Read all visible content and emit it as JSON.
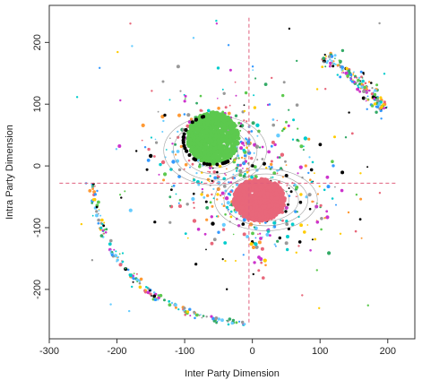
{
  "chart_data": {
    "type": "scatter",
    "title": "",
    "xlabel": "Inter Party Dimension",
    "ylabel": "Intra Party Dimension",
    "xlim": [
      -300,
      240
    ],
    "ylim": [
      -280,
      260
    ],
    "xticks": [
      -300,
      -200,
      -100,
      0,
      100,
      200
    ],
    "yticks": [
      -200,
      -100,
      0,
      100,
      200
    ],
    "xtick_labels": [
      "-300",
      "-200",
      "-100",
      "0",
      "100",
      "200"
    ],
    "ytick_labels": [
      "-200",
      "-100",
      "0",
      "100",
      "200"
    ],
    "reference_lines": {
      "vertical_x": -5,
      "vertical_y_range": [
        -255,
        240
      ],
      "horizontal_y": -28,
      "horizontal_x_range": [
        -285,
        215
      ],
      "color": "#e0607e",
      "style": "dashed"
    },
    "clusters": [
      {
        "name": "",
        "color": "#5cc94e",
        "center": [
          -58,
          45
        ],
        "radius": [
          38,
          42
        ],
        "description_values": "dense green point cloud"
      },
      {
        "name": "",
        "color": "#e8677a",
        "center": [
          10,
          -55
        ],
        "radius": [
          38,
          34
        ],
        "description_values": "dense red point cloud"
      }
    ],
    "density_contours": [
      {
        "center": [
          -55,
          25
        ],
        "rx": [
          20,
          34,
          48,
          62,
          76
        ],
        "ry": [
          18,
          28,
          38,
          48,
          56
        ],
        "color": "#888888"
      },
      {
        "center": [
          20,
          -55
        ],
        "rx": [
          20,
          34,
          48,
          62,
          76
        ],
        "ry": [
          18,
          26,
          34,
          42,
          50
        ],
        "color": "#888888"
      }
    ],
    "arcs": [
      {
        "center": [
          -5,
          -25
        ],
        "radius": 230,
        "start_deg": 30,
        "end_deg": 62,
        "note": "upper-right band"
      },
      {
        "center": [
          -5,
          -25
        ],
        "radius": 230,
        "start_deg": 180,
        "end_deg": 270,
        "note": "lower-left band"
      }
    ],
    "point_colors": [
      "#5cc94e",
      "#e8677a",
      "#3399ff",
      "#cc33cc",
      "#ff9933",
      "#00cccc",
      "#999999",
      "#000000",
      "#ffcc00",
      "#66ccff",
      "#33aa66"
    ],
    "grid": false,
    "legend": "none"
  }
}
